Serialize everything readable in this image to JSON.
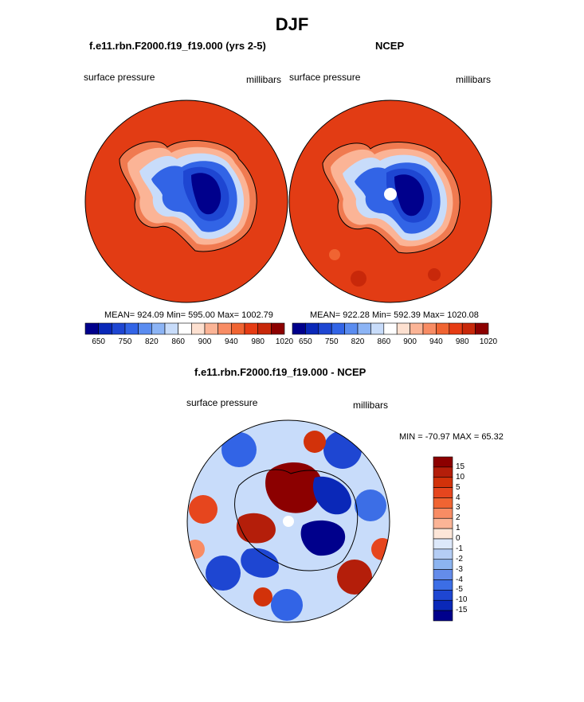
{
  "page": {
    "title": "DJF"
  },
  "panels": [
    {
      "title": "f.e11.rbn.F2000.f19_f19.000 (yrs 2-5)",
      "left_label": "surface pressure",
      "right_label": "millibars",
      "stats": "MEAN= 924.09  Min= 595.00  Max= 1002.79"
    },
    {
      "title": "NCEP",
      "left_label": "surface pressure",
      "right_label": "millibars",
      "stats": "MEAN= 922.28  Min= 592.39  Max= 1020.08"
    }
  ],
  "pressure_colorbar": {
    "colors": [
      "#00008c",
      "#0a28b8",
      "#1e46d2",
      "#3264e6",
      "#5a8cf0",
      "#8cb4f5",
      "#c8dcfa",
      "#ffffff",
      "#fde0d0",
      "#fbb496",
      "#f88c64",
      "#f06432",
      "#e63c14",
      "#c8280a",
      "#8c0000"
    ],
    "tick_labels": [
      "650",
      "750",
      "820",
      "860",
      "900",
      "940",
      "980",
      "1020"
    ]
  },
  "difference_panel": {
    "title": "f.e11.rbn.F2000.f19_f19.000 - NCEP",
    "left_label": "surface pressure",
    "right_label": "millibars",
    "minmax": "MIN = -70.97 MAX =  65.32"
  },
  "difference_colorbar": {
    "colors": [
      "#8c0000",
      "#b41e0a",
      "#d2320a",
      "#e6461e",
      "#f06432",
      "#f88c64",
      "#fbb496",
      "#fde6d8",
      "#dce8fa",
      "#b4cdf5",
      "#8cb4f0",
      "#648cea",
      "#3c6ee6",
      "#1e46d2",
      "#0a28b8",
      "#00008c"
    ],
    "tick_labels": [
      "15",
      "10",
      "5",
      "4",
      "3",
      "2",
      "1",
      "0",
      "-1",
      "-2",
      "-3",
      "-4",
      "-5",
      "-10",
      "-15"
    ]
  }
}
